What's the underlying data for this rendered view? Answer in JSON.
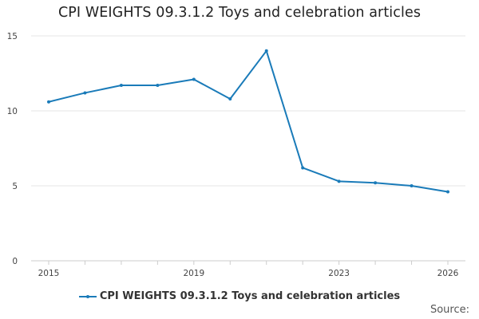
{
  "chart_data": {
    "type": "line",
    "title": "CPI WEIGHTS 09.3.1.2 Toys and celebration articles",
    "xlabel": "",
    "ylabel": "",
    "xlim": [
      2015,
      2026
    ],
    "ylim": [
      0,
      15
    ],
    "yticks": [
      0,
      5,
      10,
      15
    ],
    "xticks": [
      2015,
      2019,
      2023,
      2026
    ],
    "x": [
      2015,
      2016,
      2017,
      2018,
      2019,
      2020,
      2021,
      2022,
      2023,
      2024,
      2025,
      2026
    ],
    "series": [
      {
        "name": "CPI WEIGHTS 09.3.1.2 Toys and celebration articles",
        "values": [
          10.6,
          11.2,
          11.7,
          11.7,
          12.1,
          10.8,
          14.0,
          6.2,
          5.3,
          5.2,
          5.0,
          4.6
        ],
        "color": "#1a7bb9"
      }
    ],
    "legend": "bottom",
    "grid": true
  },
  "source_label": "Source:"
}
